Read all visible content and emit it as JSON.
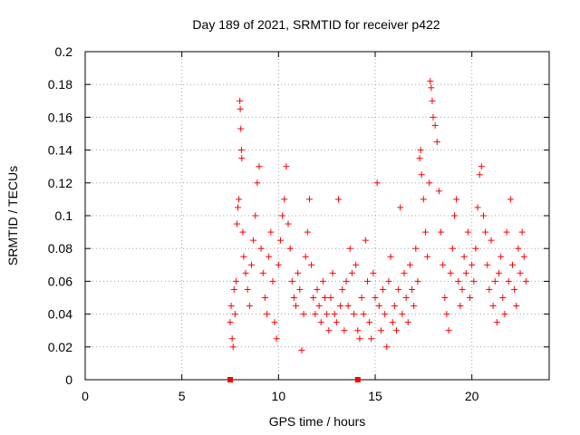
{
  "chart_data": {
    "type": "scatter",
    "title": "Day 189 of 2021, SRMTID for receiver p422",
    "xlabel": "GPS time / hours",
    "ylabel": "SRMTID / TECUs",
    "xlim": [
      0,
      24
    ],
    "ylim": [
      0,
      0.2
    ],
    "x_ticks": [
      0,
      5,
      10,
      15,
      20
    ],
    "x_tick_labels": [
      "0",
      "5",
      "10",
      "15",
      "20"
    ],
    "y_ticks": [
      0,
      0.02,
      0.04,
      0.06,
      0.08,
      0.1,
      0.12,
      0.14,
      0.16,
      0.18,
      0.2
    ],
    "y_tick_labels": [
      "0",
      "0.02",
      "0.04",
      "0.06",
      "0.08",
      "0.1",
      "0.12",
      "0.14",
      "0.16",
      "0.18",
      "0.2"
    ],
    "grid": true,
    "marker": "plus",
    "color": "#ff0000",
    "series": [
      {
        "name": "SRMTID",
        "points": [
          [
            7.5,
            0.035
          ],
          [
            7.55,
            0.045
          ],
          [
            7.6,
            0.025
          ],
          [
            7.65,
            0.02
          ],
          [
            7.7,
            0.055
          ],
          [
            7.75,
            0.04
          ],
          [
            7.8,
            0.06
          ],
          [
            7.85,
            0.095
          ],
          [
            7.9,
            0.105
          ],
          [
            7.95,
            0.11
          ],
          [
            8.0,
            0.17
          ],
          [
            8.02,
            0.165
          ],
          [
            8.05,
            0.153
          ],
          [
            8.08,
            0.14
          ],
          [
            8.1,
            0.135
          ],
          [
            8.15,
            0.09
          ],
          [
            8.2,
            0.075
          ],
          [
            8.3,
            0.065
          ],
          [
            8.4,
            0.055
          ],
          [
            8.5,
            0.045
          ],
          [
            8.6,
            0.07
          ],
          [
            8.7,
            0.085
          ],
          [
            8.8,
            0.1
          ],
          [
            8.9,
            0.12
          ],
          [
            9.0,
            0.13
          ],
          [
            9.1,
            0.08
          ],
          [
            9.2,
            0.065
          ],
          [
            9.3,
            0.05
          ],
          [
            9.4,
            0.04
          ],
          [
            9.5,
            0.075
          ],
          [
            9.6,
            0.09
          ],
          [
            9.7,
            0.06
          ],
          [
            9.8,
            0.035
          ],
          [
            9.9,
            0.025
          ],
          [
            10.0,
            0.07
          ],
          [
            10.1,
            0.085
          ],
          [
            10.2,
            0.1
          ],
          [
            10.3,
            0.11
          ],
          [
            10.4,
            0.13
          ],
          [
            10.5,
            0.095
          ],
          [
            10.6,
            0.08
          ],
          [
            10.7,
            0.06
          ],
          [
            10.8,
            0.05
          ],
          [
            10.9,
            0.045
          ],
          [
            11.0,
            0.065
          ],
          [
            11.1,
            0.055
          ],
          [
            11.2,
            0.018
          ],
          [
            11.3,
            0.04
          ],
          [
            11.4,
            0.075
          ],
          [
            11.5,
            0.09
          ],
          [
            11.6,
            0.11
          ],
          [
            11.7,
            0.07
          ],
          [
            11.8,
            0.05
          ],
          [
            11.9,
            0.04
          ],
          [
            12.0,
            0.055
          ],
          [
            12.1,
            0.045
          ],
          [
            12.2,
            0.035
          ],
          [
            12.3,
            0.06
          ],
          [
            12.4,
            0.05
          ],
          [
            12.5,
            0.04
          ],
          [
            12.6,
            0.03
          ],
          [
            12.7,
            0.05
          ],
          [
            12.8,
            0.065
          ],
          [
            12.9,
            0.04
          ],
          [
            13.0,
            0.035
          ],
          [
            13.1,
            0.11
          ],
          [
            13.2,
            0.045
          ],
          [
            13.3,
            0.055
          ],
          [
            13.4,
            0.03
          ],
          [
            13.5,
            0.06
          ],
          [
            13.6,
            0.045
          ],
          [
            13.7,
            0.08
          ],
          [
            13.8,
            0.065
          ],
          [
            13.9,
            0.04
          ],
          [
            14.0,
            0.07
          ],
          [
            14.1,
            0.03
          ],
          [
            14.2,
            0.025
          ],
          [
            14.3,
            0.05
          ],
          [
            14.4,
            0.04
          ],
          [
            14.5,
            0.085
          ],
          [
            14.6,
            0.06
          ],
          [
            14.7,
            0.035
          ],
          [
            14.8,
            0.025
          ],
          [
            14.9,
            0.065
          ],
          [
            15.0,
            0.05
          ],
          [
            15.1,
            0.12
          ],
          [
            15.2,
            0.045
          ],
          [
            15.3,
            0.03
          ],
          [
            15.4,
            0.055
          ],
          [
            15.5,
            0.04
          ],
          [
            15.6,
            0.02
          ],
          [
            15.7,
            0.06
          ],
          [
            15.8,
            0.075
          ],
          [
            15.9,
            0.035
          ],
          [
            16.0,
            0.045
          ],
          [
            16.1,
            0.03
          ],
          [
            16.2,
            0.055
          ],
          [
            16.3,
            0.105
          ],
          [
            16.4,
            0.04
          ],
          [
            16.5,
            0.065
          ],
          [
            16.6,
            0.05
          ],
          [
            16.7,
            0.035
          ],
          [
            16.8,
            0.07
          ],
          [
            16.9,
            0.055
          ],
          [
            17.0,
            0.045
          ],
          [
            17.1,
            0.08
          ],
          [
            17.2,
            0.06
          ],
          [
            17.3,
            0.135
          ],
          [
            17.35,
            0.14
          ],
          [
            17.4,
            0.125
          ],
          [
            17.5,
            0.11
          ],
          [
            17.6,
            0.09
          ],
          [
            17.7,
            0.075
          ],
          [
            17.8,
            0.12
          ],
          [
            17.85,
            0.182
          ],
          [
            17.9,
            0.178
          ],
          [
            17.95,
            0.17
          ],
          [
            18.0,
            0.16
          ],
          [
            18.1,
            0.155
          ],
          [
            18.2,
            0.145
          ],
          [
            18.3,
            0.115
          ],
          [
            18.4,
            0.09
          ],
          [
            18.5,
            0.07
          ],
          [
            18.6,
            0.05
          ],
          [
            18.7,
            0.04
          ],
          [
            18.8,
            0.03
          ],
          [
            18.9,
            0.065
          ],
          [
            19.0,
            0.08
          ],
          [
            19.1,
            0.1
          ],
          [
            19.2,
            0.11
          ],
          [
            19.3,
            0.06
          ],
          [
            19.4,
            0.045
          ],
          [
            19.5,
            0.055
          ],
          [
            19.6,
            0.075
          ],
          [
            19.7,
            0.065
          ],
          [
            19.8,
            0.09
          ],
          [
            19.9,
            0.05
          ],
          [
            20.0,
            0.07
          ],
          [
            20.1,
            0.06
          ],
          [
            20.2,
            0.08
          ],
          [
            20.3,
            0.105
          ],
          [
            20.4,
            0.125
          ],
          [
            20.5,
            0.13
          ],
          [
            20.6,
            0.1
          ],
          [
            20.7,
            0.09
          ],
          [
            20.8,
            0.07
          ],
          [
            20.9,
            0.055
          ],
          [
            21.0,
            0.085
          ],
          [
            21.1,
            0.045
          ],
          [
            21.2,
            0.06
          ],
          [
            21.3,
            0.035
          ],
          [
            21.4,
            0.065
          ],
          [
            21.5,
            0.075
          ],
          [
            21.6,
            0.05
          ],
          [
            21.7,
            0.04
          ],
          [
            21.8,
            0.09
          ],
          [
            21.9,
            0.06
          ],
          [
            22.0,
            0.11
          ],
          [
            22.1,
            0.07
          ],
          [
            22.2,
            0.055
          ],
          [
            22.3,
            0.045
          ],
          [
            22.4,
            0.08
          ],
          [
            22.5,
            0.065
          ],
          [
            22.6,
            0.09
          ],
          [
            22.7,
            0.075
          ],
          [
            22.8,
            0.06
          ]
        ]
      }
    ],
    "zero_markers": [
      {
        "x": 7.5,
        "y": 0
      },
      {
        "x": 14.1,
        "y": 0
      }
    ]
  }
}
